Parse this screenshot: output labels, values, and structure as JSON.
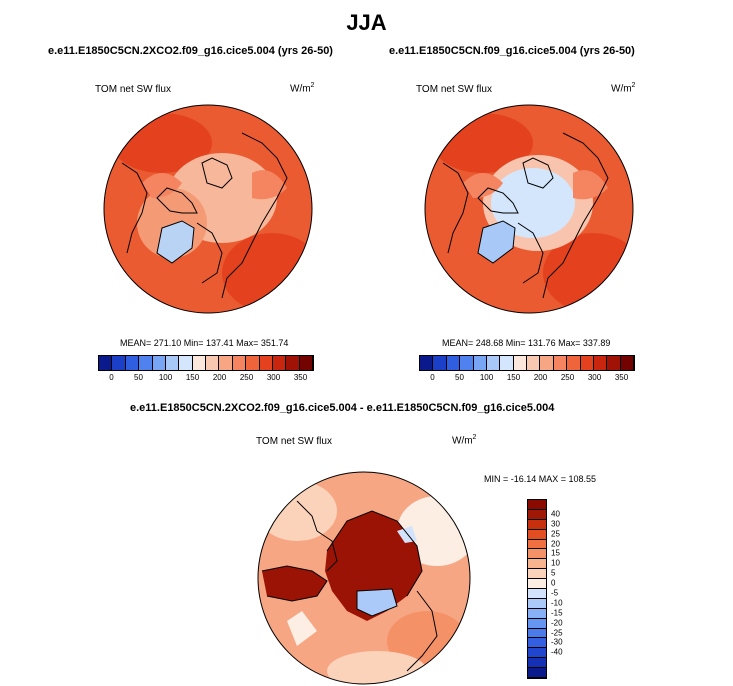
{
  "title": "JJA",
  "panels": [
    {
      "case": "e.e11.E1850C5CN.2XCO2.f09_g16.cice5.004 (yrs 26-50)",
      "field": "TOM net SW flux",
      "units": "W/m",
      "units_exp": "2",
      "stats": "MEAN= 271.10  Min= 137.41  Max= 351.74"
    },
    {
      "case": "e.e11.E1850C5CN.f09_g16.cice5.004 (yrs 26-50)",
      "field": "TOM net SW flux",
      "units": "W/m",
      "units_exp": "2",
      "stats": "MEAN= 248.68  Min= 131.76  Max= 337.89"
    }
  ],
  "diff": {
    "title": "e.e11.E1850C5CN.2XCO2.f09_g16.cice5.004 - e.e11.E1850C5CN.f09_g16.cice5.004",
    "field": "TOM net SW flux",
    "units": "W/m",
    "units_exp": "2",
    "stats": "MIN = -16.14 MAX = 108.55"
  },
  "colorbar_abs": {
    "colors": [
      "#0a1a8c",
      "#1c3fc8",
      "#2f5ee0",
      "#4f82ee",
      "#78a6f4",
      "#a8c8f8",
      "#d4e6fb",
      "#fbe7dc",
      "#f9c8b0",
      "#f7a684",
      "#f48560",
      "#f0643c",
      "#e4421f",
      "#c8260f",
      "#a01205",
      "#720300"
    ],
    "ticks": [
      "0",
      "50",
      "100",
      "150",
      "200",
      "250",
      "300",
      "350"
    ]
  },
  "colorbar_diff": {
    "colors": [
      "#0a1a8c",
      "#1530b4",
      "#2045cf",
      "#335fe0",
      "#4b7aeb",
      "#6796f2",
      "#88b0f6",
      "#abc9f9",
      "#d2e3fb",
      "#fdeee4",
      "#fbd3bb",
      "#f8b38f",
      "#f59167",
      "#f07042",
      "#e24e22",
      "#c8300d",
      "#a01705",
      "#8b0a00"
    ],
    "ticks": [
      "40",
      "30",
      "25",
      "20",
      "15",
      "10",
      "5",
      "0",
      "-5",
      "-10",
      "-15",
      "-20",
      "-25",
      "-30",
      "-40"
    ]
  },
  "colors": {
    "ocean_abs": "#ea5b31",
    "land_abs_2x": "#f5a482",
    "ice_low": "#b9d3f5",
    "diff_high": "#9b1305",
    "diff_mid": "#f6b79b",
    "coast": "#000000"
  }
}
